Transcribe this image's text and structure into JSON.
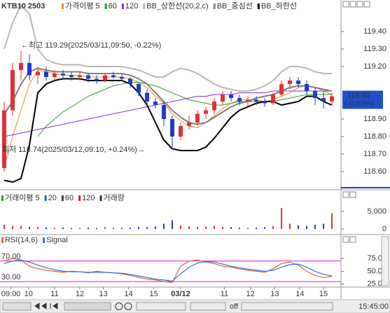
{
  "chart_data": [
    {
      "type": "candlestick",
      "title": "KTB10 2503",
      "up_color": "#e0303a",
      "down_color": "#1e3cc8",
      "candles": {
        "open": [
          118.62,
          118.95,
          119.18,
          119.22,
          119.15,
          119.17,
          119.14,
          119.16,
          119.15,
          119.14,
          119.15,
          119.13,
          119.12,
          119.15,
          119.14,
          119.13,
          119.1,
          119.05,
          119.0,
          118.98,
          118.9,
          118.8,
          118.86,
          118.88,
          118.93,
          118.95,
          119.0,
          119.04,
          119.02,
          119.0,
          119.01,
          119.0,
          118.99,
          119.04,
          119.1,
          119.12,
          119.1,
          119.06,
          119.02,
          119.0
        ],
        "high": [
          119.0,
          119.22,
          119.29,
          119.27,
          119.2,
          119.2,
          119.18,
          119.18,
          119.17,
          119.17,
          119.16,
          119.15,
          119.16,
          119.17,
          119.16,
          119.14,
          119.11,
          119.07,
          119.02,
          119.0,
          118.92,
          118.88,
          118.92,
          118.95,
          118.97,
          119.02,
          119.06,
          119.06,
          119.04,
          119.03,
          119.03,
          119.02,
          119.05,
          119.12,
          119.14,
          119.14,
          119.12,
          119.08,
          119.06,
          119.05
        ],
        "low": [
          118.6,
          118.92,
          119.12,
          119.12,
          119.1,
          119.12,
          119.12,
          119.13,
          119.12,
          119.12,
          119.11,
          119.1,
          119.11,
          119.13,
          119.12,
          119.08,
          119.03,
          118.98,
          118.96,
          118.86,
          118.74,
          118.78,
          118.84,
          118.86,
          118.9,
          118.93,
          118.98,
          119.0,
          118.98,
          118.97,
          118.98,
          118.97,
          118.98,
          119.03,
          119.07,
          119.08,
          119.04,
          118.98,
          118.96,
          118.98
        ],
        "close": [
          118.95,
          119.18,
          119.22,
          119.15,
          119.17,
          119.14,
          119.16,
          119.15,
          119.14,
          119.15,
          119.13,
          119.12,
          119.15,
          119.14,
          119.13,
          119.1,
          119.05,
          119.0,
          118.98,
          118.9,
          118.8,
          118.86,
          118.88,
          118.93,
          118.95,
          119.0,
          119.04,
          119.02,
          119.0,
          119.01,
          119.0,
          118.99,
          119.04,
          119.1,
          119.12,
          119.1,
          119.06,
          119.02,
          119.0,
          119.03
        ]
      },
      "series": [
        {
          "name": "가격이평 5",
          "color": "#f08a1c",
          "values": [
            118.62,
            118.8,
            118.95,
            119.1,
            119.18,
            119.17,
            119.16,
            119.15,
            119.15,
            119.15,
            119.14,
            119.14,
            119.14,
            119.14,
            119.14,
            119.13,
            119.11,
            119.08,
            119.03,
            118.99,
            118.93,
            118.89,
            118.86,
            118.85,
            118.88,
            118.92,
            118.96,
            118.99,
            119.01,
            119.01,
            119.01,
            119.0,
            119.01,
            119.03,
            119.05,
            119.08,
            119.09,
            119.08,
            119.06,
            119.04
          ]
        },
        {
          "name": "60",
          "color": "#2aa02a",
          "values": [
            null,
            null,
            null,
            null,
            118.8,
            118.86,
            118.9,
            118.94,
            118.97,
            119.0,
            119.03,
            119.05,
            119.07,
            119.09,
            119.1,
            119.11,
            119.11,
            119.1,
            119.09,
            119.07,
            119.05,
            119.03,
            119.01,
            119.0,
            118.99,
            118.98,
            118.98,
            118.99,
            119.0,
            119.0,
            119.0,
            119.0,
            119.0,
            119.01,
            119.02,
            119.03,
            119.04,
            119.04,
            119.04,
            119.04
          ]
        },
        {
          "name": "120",
          "color": "#8a2be2",
          "values": [
            118.8,
            118.81,
            118.82,
            118.83,
            118.84,
            118.85,
            118.86,
            118.87,
            118.88,
            118.89,
            118.9,
            118.91,
            118.92,
            118.93,
            118.94,
            118.95,
            118.96,
            118.97,
            118.98,
            118.99,
            119.0,
            119.01,
            119.02,
            119.03,
            119.03,
            119.04,
            119.04,
            119.04,
            119.05,
            119.05,
            119.05,
            119.05,
            119.06,
            119.06,
            119.06,
            119.06,
            119.06,
            119.06,
            119.06,
            119.06
          ]
        },
        {
          "name": "BB_상한선(20,2,c)",
          "color": "#b8b8b8",
          "width": 2,
          "values": [
            119.3,
            119.45,
            119.55,
            119.5,
            119.3,
            119.24,
            119.22,
            119.21,
            119.21,
            119.21,
            119.2,
            119.2,
            119.2,
            119.2,
            119.2,
            119.19,
            119.18,
            119.16,
            119.14,
            119.14,
            119.17,
            119.19,
            119.18,
            119.16,
            119.13,
            119.1,
            119.08,
            119.07,
            119.06,
            119.06,
            119.07,
            119.09,
            119.12,
            119.17,
            119.2,
            119.2,
            119.19,
            119.17,
            119.16,
            119.16
          ]
        },
        {
          "name": "BB_중심선",
          "color": "#808080",
          "width": 2,
          "values": [
            118.93,
            119.0,
            119.1,
            119.17,
            119.19,
            119.18,
            119.17,
            119.17,
            119.17,
            119.17,
            119.16,
            119.16,
            119.16,
            119.16,
            119.16,
            119.15,
            119.13,
            119.1,
            119.05,
            119.0,
            118.95,
            118.91,
            118.88,
            118.87,
            118.88,
            118.91,
            118.94,
            118.97,
            118.99,
            119.0,
            119.02,
            119.03,
            119.04,
            119.06,
            119.08,
            119.09,
            119.09,
            119.08,
            119.07,
            119.06
          ]
        },
        {
          "name": "BB_하한선",
          "color": "#000000",
          "width": 2,
          "values": [
            118.55,
            118.54,
            118.56,
            118.75,
            119.05,
            119.1,
            119.12,
            119.13,
            119.13,
            119.13,
            119.12,
            119.12,
            119.12,
            119.12,
            119.12,
            119.1,
            119.05,
            118.98,
            118.88,
            118.78,
            118.73,
            118.72,
            118.72,
            118.72,
            118.74,
            118.79,
            118.85,
            118.91,
            118.95,
            118.97,
            118.99,
            119.0,
            119.0,
            118.98,
            118.99,
            119.0,
            119.03,
            119.03,
            119.0,
            118.98
          ]
        }
      ],
      "ylim": [
        118.5,
        119.58
      ],
      "yticks": [
        {
          "value": 118.6,
          "label": "118.60"
        },
        {
          "value": 118.7,
          "label": "118.70"
        },
        {
          "value": 118.8,
          "label": "118.80"
        },
        {
          "value": 118.9,
          "label": "118.90"
        },
        {
          "value": 119.2,
          "label": "119.20"
        },
        {
          "value": 119.3,
          "label": "119.30"
        },
        {
          "value": 119.4,
          "label": "119.40"
        }
      ],
      "xlim": [
        -0.5,
        40.08
      ],
      "xticks": [
        {
          "value": 0.8,
          "label": "09:00"
        },
        {
          "value": 2.9,
          "label": "10"
        },
        {
          "value": 6,
          "label": "11"
        },
        {
          "value": 9,
          "label": "12"
        },
        {
          "value": 11.8,
          "label": "13"
        },
        {
          "value": 14.8,
          "label": "14"
        },
        {
          "value": 17.8,
          "label": "15"
        },
        {
          "value": 21,
          "label": "03/12"
        },
        {
          "value": 26.2,
          "label": "11"
        },
        {
          "value": 29.3,
          "label": "12"
        },
        {
          "value": 32.2,
          "label": "13"
        },
        {
          "value": 35.2,
          "label": "14"
        },
        {
          "value": 38,
          "label": "15"
        }
      ],
      "annotations": [
        {
          "text": "←최고 119.29(2025/03/11,09:50, -0.22%)",
          "color": "#d02020"
        },
        {
          "text": "최저 118.74(2025/03/12,09:10, +0.24%)→",
          "color": "#1e3cc8"
        }
      ],
      "last_price": {
        "value": 119.03,
        "label": "119.03",
        "change": "(-0.03%)",
        "color": "#1e50c8"
      }
    },
    {
      "type": "bar",
      "legend": [
        {
          "name": "거래이평 5",
          "color": "#2aa02a"
        },
        {
          "name": "20",
          "color": "#2060e0"
        },
        {
          "name": "60",
          "color": "#404040"
        },
        {
          "name": "120",
          "color": "#d02020"
        },
        {
          "name": "거래량",
          "color": "#333333"
        }
      ],
      "values": [
        1200,
        800,
        900,
        600,
        500,
        400,
        300,
        400,
        300,
        300,
        400,
        300,
        500,
        300,
        300,
        400,
        600,
        500,
        700,
        1500,
        2500,
        1000,
        800,
        600,
        700,
        900,
        600,
        500,
        400,
        300,
        400,
        500,
        800,
        6000,
        1500,
        1000,
        900,
        1200,
        1500,
        4500
      ],
      "ylim": [
        0,
        7800
      ],
      "yticks": [
        0,
        {
          "value": 5000,
          "label": "5,000"
        }
      ]
    },
    {
      "type": "line",
      "series": [
        {
          "name": "RSI(14,6)",
          "color": "#e8602c",
          "values": [
            70,
            75,
            72,
            60,
            55,
            52,
            50,
            48,
            50,
            49,
            47,
            50,
            48,
            47,
            45,
            42,
            38,
            35,
            33,
            30,
            28,
            60,
            70,
            72,
            68,
            65,
            60,
            58,
            55,
            52,
            50,
            48,
            55,
            65,
            68,
            62,
            50,
            42,
            38,
            40
          ]
        },
        {
          "name": "Signal",
          "color": "#3070e0",
          "values": [
            65,
            70,
            72,
            68,
            62,
            57,
            53,
            50,
            49,
            49,
            48,
            48,
            48,
            47,
            46,
            44,
            41,
            38,
            35,
            33,
            31,
            45,
            58,
            66,
            69,
            68,
            64,
            60,
            57,
            54,
            52,
            50,
            52,
            58,
            63,
            64,
            58,
            50,
            44,
            41
          ]
        }
      ],
      "levels": [
        {
          "value": 70,
          "label": "70.00"
        },
        {
          "value": 30,
          "label": "30.00"
        }
      ],
      "level_color": "#d020d0",
      "ylim": [
        22,
        101
      ],
      "yticks": [
        {
          "value": 25,
          "label": "25.00"
        },
        {
          "value": 50,
          "label": "50.00"
        },
        {
          "value": 75,
          "label": "75.00"
        }
      ]
    }
  ],
  "toolbar": {
    "toggle": "off",
    "time": "15:45:00"
  }
}
